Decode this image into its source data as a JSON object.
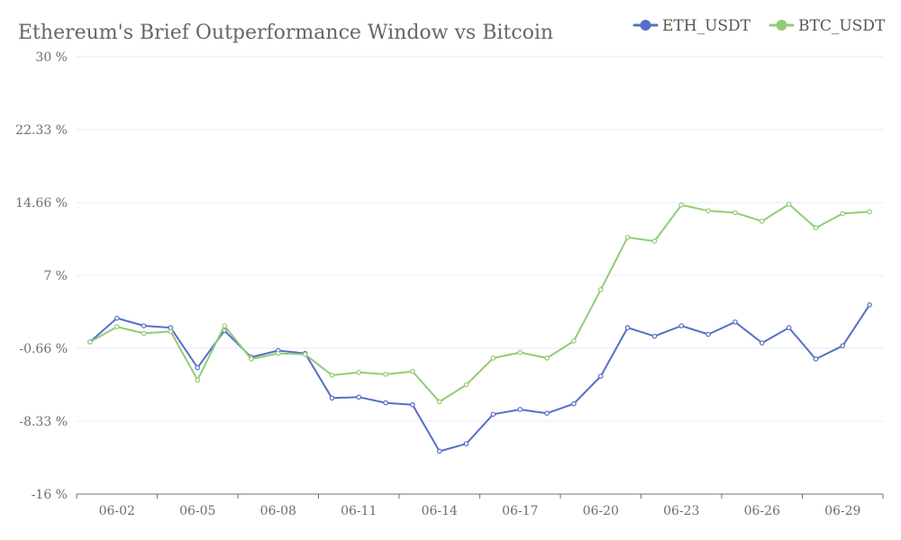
{
  "chart_data": {
    "type": "line",
    "title": "Ethereum's Brief Outperformance Window vs Bitcoin",
    "x": [
      "06-01",
      "06-02",
      "06-03",
      "06-04",
      "06-05",
      "06-06",
      "06-07",
      "06-08",
      "06-09",
      "06-10",
      "06-11",
      "06-12",
      "06-13",
      "06-14",
      "06-15",
      "06-16",
      "06-17",
      "06-18",
      "06-19",
      "06-20",
      "06-21",
      "06-22",
      "06-23",
      "06-24",
      "06-25",
      "06-26",
      "06-27",
      "06-28",
      "06-29",
      "06-30"
    ],
    "x_tick_labels": [
      "06-02",
      "06-05",
      "06-08",
      "06-11",
      "06-14",
      "06-17",
      "06-20",
      "06-23",
      "06-26",
      "06-29"
    ],
    "y_ticks": [
      30,
      22.33,
      14.66,
      7,
      -0.66,
      -8.33,
      -16
    ],
    "y_tick_labels": [
      "30 %",
      "22.33 %",
      "14.66 %",
      "7 %",
      "-0.66 %",
      "-8.33 %",
      "-16 %"
    ],
    "ylim": [
      -16,
      30
    ],
    "legend_position": "top-right",
    "grid": true,
    "series": [
      {
        "name": "ETH_USDT",
        "color": "#5470c6",
        "values": [
          0.0,
          2.5,
          1.7,
          1.5,
          -2.7,
          1.2,
          -1.6,
          -0.9,
          -1.2,
          -5.9,
          -5.8,
          -6.4,
          -6.6,
          -11.5,
          -10.7,
          -7.6,
          -7.1,
          -7.5,
          -6.5,
          -3.6,
          1.5,
          0.6,
          1.7,
          0.8,
          2.1,
          -0.1,
          1.5,
          -1.8,
          -0.4,
          3.9
        ]
      },
      {
        "name": "BTC_USDT",
        "color": "#91cc75",
        "values": [
          0.0,
          1.6,
          0.9,
          1.1,
          -4.0,
          1.7,
          -1.8,
          -1.2,
          -1.3,
          -3.5,
          -3.2,
          -3.4,
          -3.1,
          -6.3,
          -4.5,
          -1.7,
          -1.1,
          -1.7,
          0.1,
          5.5,
          11.0,
          10.6,
          14.4,
          13.8,
          13.6,
          12.7,
          14.5,
          12.0,
          13.5,
          13.7
        ]
      }
    ]
  }
}
